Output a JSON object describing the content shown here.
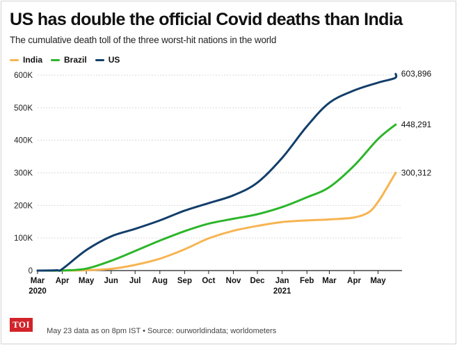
{
  "header": {
    "title": "US has double the official Covid deaths than India",
    "subtitle": "The cumulative death toll of the three worst-hit nations in the world"
  },
  "footer": {
    "logo": "TOI",
    "source": "May 23 data as on 8pm IST • Source: ourworldindata; worldometers"
  },
  "colors": {
    "India": "#f7b451",
    "Brazil": "#2cb52a",
    "US": "#123e6a",
    "grid": "#d9d9d9",
    "axis": "#222222"
  },
  "chart_data": {
    "type": "line",
    "ylim": [
      0,
      600000
    ],
    "yticks": [
      0,
      100000,
      200000,
      300000,
      400000,
      500000,
      600000
    ],
    "ytick_labels": [
      "0",
      "100K",
      "200K",
      "300K",
      "400K",
      "500K",
      "600K"
    ],
    "xlim": [
      "2020-03-01",
      "2021-05-31"
    ],
    "xticks": [
      {
        "date": "2020-03-01",
        "label": "Mar",
        "sublabel": "2020"
      },
      {
        "date": "2020-04-01",
        "label": "Apr",
        "sublabel": ""
      },
      {
        "date": "2020-05-01",
        "label": "May",
        "sublabel": ""
      },
      {
        "date": "2020-06-01",
        "label": "Jun",
        "sublabel": ""
      },
      {
        "date": "2020-07-01",
        "label": "Jul",
        "sublabel": ""
      },
      {
        "date": "2020-08-01",
        "label": "Aug",
        "sublabel": ""
      },
      {
        "date": "2020-09-01",
        "label": "Sep",
        "sublabel": ""
      },
      {
        "date": "2020-10-01",
        "label": "Oct",
        "sublabel": ""
      },
      {
        "date": "2020-11-01",
        "label": "Nov",
        "sublabel": ""
      },
      {
        "date": "2020-12-01",
        "label": "Dec",
        "sublabel": ""
      },
      {
        "date": "2021-01-01",
        "label": "Jan",
        "sublabel": "2021"
      },
      {
        "date": "2021-02-01",
        "label": "Feb",
        "sublabel": ""
      },
      {
        "date": "2021-03-01",
        "label": "Mar",
        "sublabel": ""
      },
      {
        "date": "2021-04-01",
        "label": "Apr",
        "sublabel": ""
      },
      {
        "date": "2021-05-01",
        "label": "May",
        "sublabel": ""
      }
    ],
    "grid": true,
    "legend_position": "top-left",
    "series": [
      {
        "name": "India",
        "end_label": "300,312",
        "points": [
          [
            "2020-03-01",
            0
          ],
          [
            "2020-04-01",
            50
          ],
          [
            "2020-05-01",
            1200
          ],
          [
            "2020-06-01",
            5400
          ],
          [
            "2020-07-01",
            17400
          ],
          [
            "2020-08-01",
            36500
          ],
          [
            "2020-09-01",
            65300
          ],
          [
            "2020-10-01",
            98700
          ],
          [
            "2020-11-01",
            122100
          ],
          [
            "2020-12-01",
            137100
          ],
          [
            "2021-01-01",
            149000
          ],
          [
            "2021-02-01",
            154000
          ],
          [
            "2021-03-01",
            157000
          ],
          [
            "2021-04-01",
            163000
          ],
          [
            "2021-04-20",
            180000
          ],
          [
            "2021-05-01",
            211000
          ],
          [
            "2021-05-10",
            246000
          ],
          [
            "2021-05-23",
            300312
          ]
        ]
      },
      {
        "name": "Brazil",
        "end_label": "448,291",
        "points": [
          [
            "2020-03-01",
            0
          ],
          [
            "2020-04-01",
            240
          ],
          [
            "2020-05-01",
            6000
          ],
          [
            "2020-06-01",
            30000
          ],
          [
            "2020-07-01",
            60000
          ],
          [
            "2020-08-01",
            92000
          ],
          [
            "2020-09-01",
            121000
          ],
          [
            "2020-10-01",
            144000
          ],
          [
            "2020-11-01",
            159000
          ],
          [
            "2020-12-01",
            173000
          ],
          [
            "2021-01-01",
            195000
          ],
          [
            "2021-02-01",
            225000
          ],
          [
            "2021-03-01",
            256000
          ],
          [
            "2021-04-01",
            322000
          ],
          [
            "2021-05-01",
            404000
          ],
          [
            "2021-05-23",
            448291
          ]
        ]
      },
      {
        "name": "US",
        "end_label": "603,896",
        "points": [
          [
            "2020-03-01",
            0
          ],
          [
            "2020-03-25",
            1000
          ],
          [
            "2020-04-01",
            5000
          ],
          [
            "2020-05-01",
            63000
          ],
          [
            "2020-06-01",
            105000
          ],
          [
            "2020-07-01",
            128000
          ],
          [
            "2020-08-01",
            154000
          ],
          [
            "2020-09-01",
            184000
          ],
          [
            "2020-10-01",
            207000
          ],
          [
            "2020-11-01",
            231000
          ],
          [
            "2020-12-01",
            270000
          ],
          [
            "2021-01-01",
            346000
          ],
          [
            "2021-02-01",
            443000
          ],
          [
            "2021-03-01",
            515000
          ],
          [
            "2021-04-01",
            553000
          ],
          [
            "2021-05-01",
            577000
          ],
          [
            "2021-05-22",
            591000
          ],
          [
            "2021-05-23",
            603896
          ]
        ]
      }
    ]
  }
}
